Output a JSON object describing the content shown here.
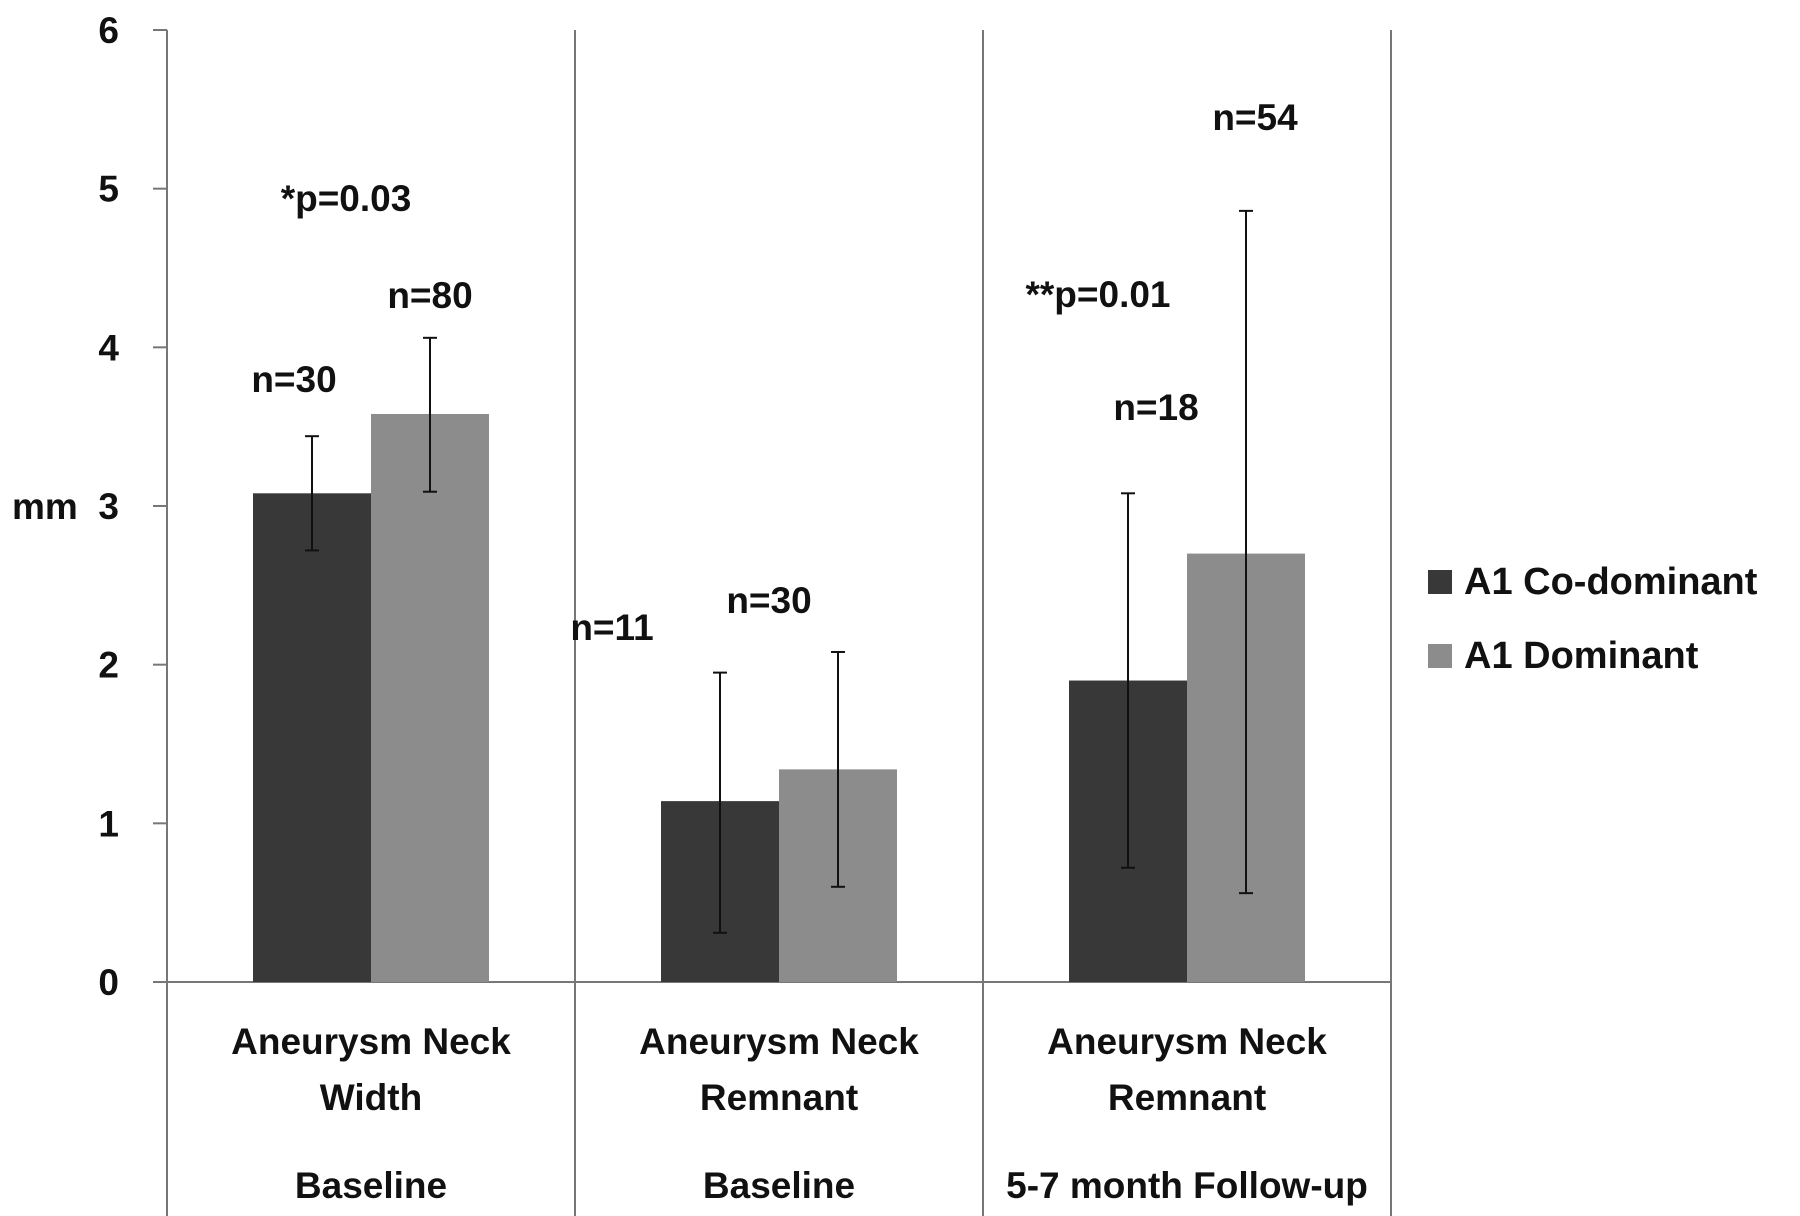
{
  "chart_data": {
    "type": "bar",
    "title": "",
    "ylabel": "mm",
    "xlabel": "",
    "ylim": [
      0,
      6
    ],
    "yticks": [
      "0",
      "1",
      "2",
      "3",
      "4",
      "5",
      "6"
    ],
    "grid": false,
    "legend_position": "right",
    "categories": [
      {
        "line1": "Aneurysm Neck",
        "line2": "Width",
        "timepoint": "Baseline"
      },
      {
        "line1": "Aneurysm Neck",
        "line2": "Remnant",
        "timepoint": "Baseline"
      },
      {
        "line1": "Aneurysm Neck",
        "line2": "Remnant",
        "timepoint": "5-7 month Follow-up"
      }
    ],
    "series": [
      {
        "name": "A1 Co-dominant",
        "color": "#383838",
        "values": [
          3.08,
          1.14,
          1.9
        ],
        "error_low": [
          2.72,
          0.31,
          0.72
        ],
        "error_high": [
          3.44,
          1.95,
          3.08
        ],
        "n_labels": [
          "n=30",
          "n=11",
          "n=18"
        ]
      },
      {
        "name": "A1 Dominant",
        "color": "#8c8c8c",
        "values": [
          3.58,
          1.34,
          2.7
        ],
        "error_low": [
          3.09,
          0.6,
          0.56
        ],
        "error_high": [
          4.06,
          2.08,
          4.86
        ],
        "n_labels": [
          "n=80",
          "n=30",
          "n=54"
        ]
      }
    ],
    "annotations": [
      {
        "text": "*p=0.03",
        "category": 0
      },
      {
        "text": "**p=0.01",
        "category": 2
      }
    ]
  }
}
